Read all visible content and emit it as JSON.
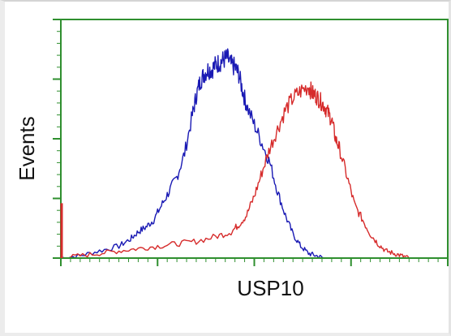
{
  "chart_data": {
    "type": "line",
    "xlabel": "USP10",
    "ylabel": "Events",
    "title": "",
    "xlim": [
      0,
      100
    ],
    "ylim": [
      0,
      100
    ],
    "grid": false,
    "colors": {
      "frame": "#2f8f2f",
      "blue_series": "#1a1ab4",
      "red_series": "#d62b2b",
      "text": "#111111"
    },
    "x_major_ticks": [
      0,
      25,
      50,
      75,
      100
    ],
    "y_major_ticks": [
      0,
      25,
      50,
      75,
      100
    ],
    "series": [
      {
        "color": "blue",
        "x": [
          0,
          5,
          10,
          15,
          18,
          20,
          22,
          24,
          26,
          28,
          30,
          32,
          34,
          35,
          36,
          37,
          38,
          39,
          40,
          41,
          42,
          43,
          44,
          45,
          46,
          47,
          48,
          50,
          52,
          54,
          56,
          58,
          60,
          62,
          64,
          66,
          68
        ],
        "y": [
          0,
          1,
          3,
          5,
          8,
          11,
          13,
          16,
          22,
          28,
          34,
          44,
          60,
          68,
          74,
          77,
          79,
          79,
          81,
          82,
          83,
          84,
          81,
          80,
          77,
          70,
          64,
          56,
          48,
          40,
          28,
          18,
          10,
          5,
          2,
          1,
          0
        ]
      },
      {
        "color": "red",
        "x": [
          0,
          5,
          10,
          15,
          20,
          25,
          30,
          35,
          40,
          44,
          46,
          48,
          50,
          52,
          54,
          56,
          58,
          60,
          62,
          64,
          65,
          66,
          67,
          68,
          69,
          70,
          71,
          72,
          74,
          76,
          78,
          80,
          82,
          84,
          86,
          88,
          90
        ],
        "y": [
          0,
          1,
          2,
          3,
          4,
          5,
          6,
          7,
          9,
          11,
          14,
          18,
          26,
          36,
          46,
          54,
          62,
          67,
          70,
          72,
          69,
          68,
          66,
          64,
          61,
          58,
          50,
          46,
          34,
          22,
          16,
          10,
          6,
          3,
          2,
          1,
          0
        ]
      }
    ]
  }
}
